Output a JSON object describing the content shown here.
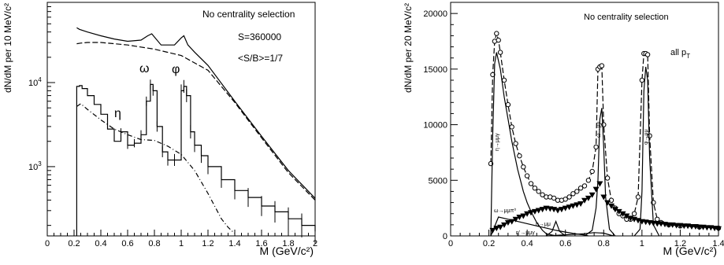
{
  "chart_data": [
    {
      "type": "line",
      "yscale": "log",
      "xlabel": "M (GeV/c²)",
      "ylabel": "dN/dM per 10 MeV/c²",
      "xlim": [
        0,
        2
      ],
      "ylim": [
        150,
        90000
      ],
      "x_ticks": [
        "0",
        "0.2",
        "0.4",
        "0.6",
        "0.8",
        "1",
        "1.2",
        "1.4",
        "1.6",
        "1.8",
        "2"
      ],
      "y_tick_labels": [
        {
          "value": 1000,
          "base": "10",
          "exp": "3"
        },
        {
          "value": 10000,
          "base": "10",
          "exp": "4"
        }
      ],
      "annotations": {
        "title": "No centrality selection",
        "signal": "S=360000",
        "ratio": "<S/B>=1/7",
        "omega": "ω",
        "phi": "φ",
        "eta": "η"
      },
      "series": [
        {
          "style": "solid",
          "x": [
            0.22,
            0.24,
            0.3,
            0.4,
            0.5,
            0.6,
            0.7,
            0.75,
            0.78,
            0.85,
            0.95,
            1.0,
            1.02,
            1.05,
            1.1,
            1.2,
            1.4,
            1.6,
            1.8,
            2.0
          ],
          "y": [
            45000,
            43000,
            40000,
            36000,
            33000,
            31000,
            32000,
            36000,
            38000,
            28000,
            28000,
            34000,
            36000,
            28000,
            23000,
            16000,
            6000,
            2300,
            900,
            420
          ]
        },
        {
          "style": "dashed",
          "x": [
            0.22,
            0.25,
            0.3,
            0.4,
            0.6,
            0.8,
            1.0,
            1.2,
            1.4,
            1.6,
            1.8,
            2.0
          ],
          "y": [
            29000,
            29500,
            30000,
            30000,
            28000,
            25000,
            21000,
            14000,
            5800,
            2200,
            850,
            400
          ]
        },
        {
          "style": "histogram",
          "x": [
            0.22,
            0.24,
            0.26,
            0.3,
            0.35,
            0.4,
            0.45,
            0.5,
            0.55,
            0.6,
            0.65,
            0.7,
            0.74,
            0.77,
            0.79,
            0.82,
            0.86,
            0.9,
            0.95,
            1.0,
            1.02,
            1.04,
            1.07,
            1.1,
            1.15,
            1.2,
            1.3,
            1.4,
            1.5,
            1.6,
            1.7,
            1.8,
            1.9,
            2.0
          ],
          "y": [
            9000,
            9200,
            8500,
            7000,
            5500,
            4200,
            2800,
            2000,
            2600,
            1800,
            1900,
            2400,
            6000,
            9500,
            8000,
            3000,
            1500,
            1200,
            1200,
            8000,
            9000,
            7000,
            2600,
            1800,
            1350,
            1000,
            700,
            520,
            430,
            340,
            290,
            240,
            200,
            170
          ]
        },
        {
          "style": "dash-dot",
          "x": [
            0.22,
            0.25,
            0.3,
            0.4,
            0.5,
            0.6,
            0.7,
            0.8,
            0.9,
            1.0,
            1.1,
            1.2,
            1.3,
            1.35,
            1.4
          ],
          "y": [
            5200,
            5600,
            4800,
            3600,
            2800,
            2400,
            2100,
            2050,
            1750,
            1400,
            900,
            480,
            240,
            190,
            160
          ]
        }
      ]
    },
    {
      "type": "line",
      "xlabel": "M (GeV/c²)",
      "ylabel": "dN/dM per 20 MeV/c²",
      "xlim": [
        0,
        1.4
      ],
      "ylim": [
        0,
        21000
      ],
      "x_ticks": [
        "0",
        "0.2",
        "0.4",
        "0.6",
        "0.8",
        "1",
        "1.2",
        "1.4"
      ],
      "y_ticks": [
        "0",
        "5000",
        "10000",
        "15000",
        "20000"
      ],
      "annotations": {
        "title": "No centrality selection",
        "pt_main": "all p",
        "pt_sub": "T",
        "eta_mumugamma": "η→μμγ",
        "omega_mumu": "ω→μμ",
        "phi_mumu": "φ→μμ",
        "omega_mumupi0": "ω→μμπ⁰",
        "eta_mumu": "η→μμ",
        "eta_prime": "η'→μμγ"
      },
      "series": [
        {
          "style": "dashed-open-circles",
          "x": [
            0.21,
            0.22,
            0.23,
            0.24,
            0.25,
            0.26,
            0.28,
            0.3,
            0.32,
            0.34,
            0.36,
            0.38,
            0.4,
            0.42,
            0.44,
            0.46,
            0.48,
            0.5,
            0.52,
            0.54,
            0.56,
            0.58,
            0.6,
            0.62,
            0.64,
            0.66,
            0.68,
            0.7,
            0.72,
            0.74,
            0.76,
            0.77,
            0.78,
            0.79,
            0.8,
            0.82,
            0.84,
            0.86,
            0.88,
            0.9,
            0.92,
            0.94,
            0.96,
            0.98,
            1.0,
            1.01,
            1.02,
            1.03,
            1.04,
            1.06,
            1.08,
            1.1,
            1.14,
            1.2,
            1.3,
            1.4
          ],
          "y": [
            6500,
            14500,
            17500,
            18200,
            17600,
            16500,
            14000,
            11800,
            9800,
            8300,
            7200,
            6200,
            5400,
            4700,
            4300,
            4000,
            3700,
            3500,
            3500,
            3400,
            3200,
            3200,
            3300,
            3500,
            3800,
            4000,
            4300,
            4500,
            5000,
            5800,
            8000,
            15000,
            15200,
            15300,
            10000,
            5200,
            3200,
            2500,
            2000,
            1800,
            1500,
            1500,
            2000,
            3500,
            14000,
            16400,
            16400,
            16300,
            9000,
            3000,
            1500,
            1200,
            1000,
            900,
            800,
            700
          ]
        },
        {
          "style": "solid",
          "x": [
            0.21,
            0.22,
            0.23,
            0.24,
            0.26,
            0.28,
            0.3,
            0.32,
            0.35,
            0.38,
            0.4,
            0.42,
            0.45,
            0.48,
            0.5,
            0.55
          ],
          "y": [
            0,
            9000,
            15500,
            16500,
            15000,
            12500,
            10500,
            8500,
            6000,
            4000,
            3000,
            2200,
            1200,
            500,
            200,
            0
          ]
        },
        {
          "style": "solid",
          "x": [
            0.7,
            0.74,
            0.76,
            0.77,
            0.78,
            0.79,
            0.8,
            0.81,
            0.83,
            0.86
          ],
          "y": [
            0,
            500,
            2500,
            5000,
            10500,
            11500,
            8000,
            3500,
            600,
            0
          ]
        },
        {
          "style": "solid",
          "x": [
            0.96,
            0.99,
            1.0,
            1.01,
            1.02,
            1.03,
            1.04,
            1.06,
            1.09
          ],
          "y": [
            0,
            600,
            4000,
            13000,
            15200,
            14000,
            7000,
            1000,
            0
          ]
        },
        {
          "style": "solid",
          "x": [
            0.21,
            0.25,
            0.3,
            0.35,
            0.4,
            0.45,
            0.5,
            0.55,
            0.6,
            0.65,
            0.7,
            0.72
          ],
          "y": [
            0,
            1700,
            1500,
            1300,
            1100,
            900,
            700,
            500,
            350,
            200,
            80,
            0
          ]
        },
        {
          "style": "solid",
          "x": [
            0.5,
            0.53,
            0.55,
            0.57,
            0.6
          ],
          "y": [
            0,
            400,
            1300,
            400,
            0
          ]
        },
        {
          "style": "solid",
          "x": [
            0.5,
            0.6,
            0.7,
            0.75,
            0.8,
            0.85
          ],
          "y": [
            0,
            100,
            200,
            300,
            250,
            0
          ]
        },
        {
          "style": "filled-down-triangles",
          "x": [
            0.22,
            0.24,
            0.26,
            0.28,
            0.3,
            0.32,
            0.34,
            0.36,
            0.38,
            0.4,
            0.42,
            0.44,
            0.46,
            0.48,
            0.5,
            0.52,
            0.54,
            0.56,
            0.58,
            0.6,
            0.62,
            0.64,
            0.66,
            0.68,
            0.7,
            0.72,
            0.74,
            0.76,
            0.78,
            0.8,
            0.82,
            0.84,
            0.86,
            0.88,
            0.9,
            0.92,
            0.94,
            0.96,
            0.98,
            1.0,
            1.02,
            1.04,
            1.06,
            1.08,
            1.1,
            1.12,
            1.14,
            1.16,
            1.18,
            1.2,
            1.22,
            1.24,
            1.26,
            1.28,
            1.3,
            1.32,
            1.34,
            1.36,
            1.38,
            1.4
          ],
          "y": [
            500,
            700,
            800,
            1000,
            1200,
            1300,
            1500,
            1700,
            1800,
            2000,
            2100,
            2200,
            2300,
            2400,
            2500,
            2450,
            2400,
            2300,
            2400,
            2500,
            2600,
            2700,
            2800,
            2900,
            3200,
            3400,
            3700,
            4200,
            4700,
            3500,
            3000,
            2700,
            2400,
            2200,
            2000,
            1800,
            1600,
            1500,
            1400,
            1300,
            1250,
            1200,
            1150,
            1100,
            1100,
            1050,
            1000,
            1000,
            950,
            950,
            900,
            900,
            850,
            850,
            800,
            800,
            750,
            750,
            700,
            650
          ]
        }
      ]
    }
  ]
}
